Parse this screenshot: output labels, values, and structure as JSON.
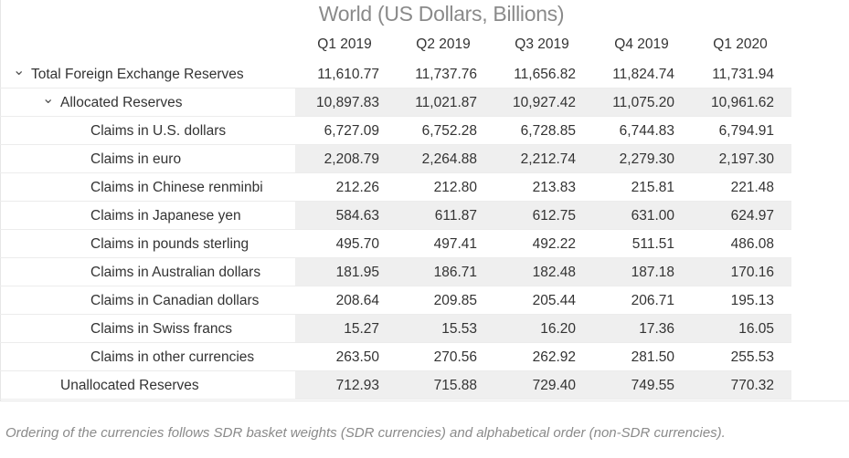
{
  "title": "World (US Dollars, Billions)",
  "columns": [
    "Q1 2019",
    "Q2 2019",
    "Q3 2019",
    "Q4 2019",
    "Q1 2020"
  ],
  "rows": [
    {
      "label": "Total Foreign Exchange Reserves",
      "values": [
        "11,610.77",
        "11,737.76",
        "11,656.82",
        "11,824.74",
        "11,731.94"
      ]
    },
    {
      "label": "Allocated Reserves",
      "values": [
        "10,897.83",
        "11,021.87",
        "10,927.42",
        "11,075.20",
        "10,961.62"
      ]
    },
    {
      "label": "Claims in U.S. dollars",
      "values": [
        "6,727.09",
        "6,752.28",
        "6,728.85",
        "6,744.83",
        "6,794.91"
      ]
    },
    {
      "label": "Claims in euro",
      "values": [
        "2,208.79",
        "2,264.88",
        "2,212.74",
        "2,279.30",
        "2,197.30"
      ]
    },
    {
      "label": "Claims in Chinese renminbi",
      "values": [
        "212.26",
        "212.80",
        "213.83",
        "215.81",
        "221.48"
      ]
    },
    {
      "label": "Claims in Japanese yen",
      "values": [
        "584.63",
        "611.87",
        "612.75",
        "631.00",
        "624.97"
      ]
    },
    {
      "label": "Claims in pounds sterling",
      "values": [
        "495.70",
        "497.41",
        "492.22",
        "511.51",
        "486.08"
      ]
    },
    {
      "label": "Claims in Australian dollars",
      "values": [
        "181.95",
        "186.71",
        "182.48",
        "187.18",
        "170.16"
      ]
    },
    {
      "label": "Claims in Canadian dollars",
      "values": [
        "208.64",
        "209.85",
        "205.44",
        "206.71",
        "195.13"
      ]
    },
    {
      "label": "Claims in Swiss francs",
      "values": [
        "15.27",
        "15.53",
        "16.20",
        "17.36",
        "16.05"
      ]
    },
    {
      "label": "Claims in other currencies",
      "values": [
        "263.50",
        "270.56",
        "262.92",
        "281.50",
        "255.53"
      ]
    },
    {
      "label": "Unallocated Reserves",
      "values": [
        "712.93",
        "715.88",
        "729.40",
        "749.55",
        "770.32"
      ]
    }
  ],
  "footnote": "Ordering of the currencies follows SDR basket weights (SDR currencies) and alphabetical order (non-SDR currencies).",
  "colors": {
    "title": "#8a8a8a",
    "band": "#efefef",
    "rule": "#ececec",
    "footnote": "#8a8a8a"
  },
  "icons": {
    "expand": "chevron-down-icon"
  }
}
